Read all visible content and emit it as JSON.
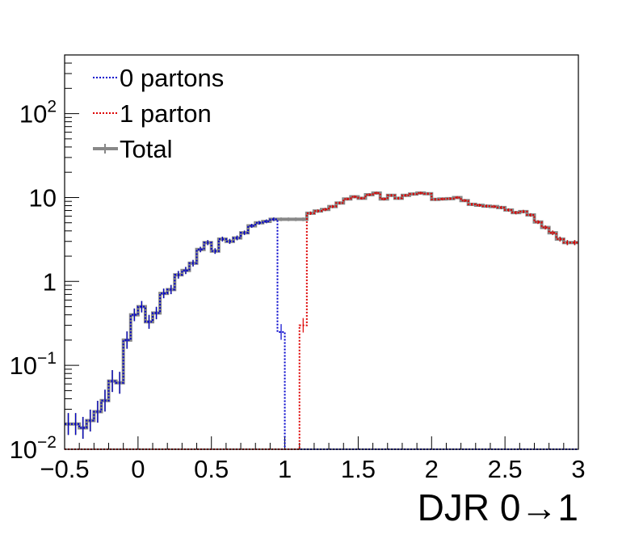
{
  "chart_data": {
    "type": "line",
    "title": "",
    "xlabel": "DJR 0→1",
    "ylabel": "",
    "xlim": [
      -0.5,
      3.0
    ],
    "ylim": [
      0.01,
      500
    ],
    "yscale": "log",
    "grid": false,
    "legend_position": "top-left",
    "bin_width": 0.05,
    "x_ticks": [
      "−0.5",
      "0",
      "0.5",
      "1",
      "1.5",
      "2",
      "2.5",
      "3"
    ],
    "y_ticks": [
      {
        "value": 0.01,
        "base": "10",
        "exp": "−2"
      },
      {
        "value": 0.1,
        "base": "10",
        "exp": "−1"
      },
      {
        "value": 1,
        "base": "1",
        "exp": ""
      },
      {
        "value": 10,
        "base": "10",
        "exp": ""
      },
      {
        "value": 100,
        "base": "10",
        "exp": "2"
      }
    ],
    "x_bins_left": [
      -0.5,
      -0.45,
      -0.4,
      -0.35,
      -0.3,
      -0.25,
      -0.2,
      -0.15,
      -0.1,
      -0.05,
      0.0,
      0.05,
      0.1,
      0.15,
      0.2,
      0.25,
      0.3,
      0.35,
      0.4,
      0.45,
      0.5,
      0.55,
      0.6,
      0.65,
      0.7,
      0.75,
      0.8,
      0.85,
      0.9,
      0.95,
      1.0,
      1.05,
      1.1,
      1.15,
      1.2,
      1.25,
      1.3,
      1.35,
      1.4,
      1.45,
      1.5,
      1.55,
      1.6,
      1.65,
      1.7,
      1.75,
      1.8,
      1.85,
      1.9,
      1.95,
      2.0,
      2.05,
      2.1,
      2.15,
      2.2,
      2.25,
      2.3,
      2.35,
      2.4,
      2.45,
      2.5,
      2.55,
      2.6,
      2.65,
      2.7,
      2.75,
      2.8,
      2.85,
      2.9,
      2.95
    ],
    "series": [
      {
        "name": "0 partons",
        "color": "#0000cc",
        "style": "dotted",
        "values": [
          0.02,
          0.02,
          0.018,
          0.022,
          0.028,
          0.038,
          0.065,
          0.062,
          0.2,
          0.4,
          0.5,
          0.33,
          0.42,
          0.72,
          0.8,
          1.2,
          1.35,
          1.65,
          2.4,
          2.9,
          2.3,
          3.2,
          3.0,
          3.3,
          3.8,
          4.6,
          5.0,
          5.2,
          5.5,
          0.25,
          0.01,
          0.01,
          0.01,
          0.01,
          0.01,
          0.01,
          0.01,
          0.01,
          0.01,
          0.01,
          0.01,
          0.01,
          0.01,
          0.01,
          0.01,
          0.01,
          0.01,
          0.01,
          0.01,
          0.01,
          0.01,
          0.01,
          0.01,
          0.01,
          0.01,
          0.01,
          0.01,
          0.01,
          0.01,
          0.01,
          0.01,
          0.01,
          0.01,
          0.01,
          0.01,
          0.01,
          0.01,
          0.01,
          0.01,
          0.01
        ]
      },
      {
        "name": "1 parton",
        "color": "#dd0000",
        "style": "dotted",
        "values": [
          0.01,
          0.01,
          0.01,
          0.01,
          0.01,
          0.01,
          0.01,
          0.01,
          0.01,
          0.01,
          0.01,
          0.01,
          0.01,
          0.01,
          0.01,
          0.01,
          0.01,
          0.01,
          0.01,
          0.01,
          0.01,
          0.01,
          0.01,
          0.01,
          0.01,
          0.01,
          0.01,
          0.01,
          0.01,
          0.01,
          0.01,
          0.01,
          0.3,
          6.5,
          6.9,
          7.2,
          7.8,
          8.6,
          9.6,
          10.2,
          9.8,
          10.8,
          11.3,
          9.6,
          10.6,
          9.8,
          10.6,
          11.0,
          11.3,
          11.1,
          9.5,
          9.6,
          9.7,
          10.0,
          9.2,
          8.3,
          8.1,
          7.9,
          7.8,
          7.6,
          7.1,
          6.6,
          6.8,
          6.2,
          5.1,
          4.4,
          3.8,
          3.2,
          2.9,
          2.9
        ]
      },
      {
        "name": "Total",
        "color": "#888888",
        "style": "solid",
        "values": [
          0.02,
          0.02,
          0.018,
          0.022,
          0.028,
          0.038,
          0.065,
          0.062,
          0.2,
          0.4,
          0.5,
          0.33,
          0.42,
          0.72,
          0.8,
          1.2,
          1.35,
          1.65,
          2.4,
          2.9,
          2.3,
          3.2,
          3.0,
          3.3,
          3.8,
          4.6,
          5.0,
          5.2,
          5.5,
          5.5,
          5.5,
          5.5,
          5.5,
          6.5,
          6.9,
          7.2,
          7.8,
          8.6,
          9.6,
          10.2,
          9.8,
          10.8,
          11.3,
          9.6,
          10.6,
          9.8,
          10.6,
          11.0,
          11.3,
          11.1,
          9.5,
          9.6,
          9.7,
          10.0,
          9.2,
          8.3,
          8.1,
          7.9,
          7.8,
          7.6,
          7.1,
          6.6,
          6.8,
          6.2,
          5.1,
          4.4,
          3.8,
          3.2,
          2.9,
          2.9
        ]
      }
    ]
  }
}
